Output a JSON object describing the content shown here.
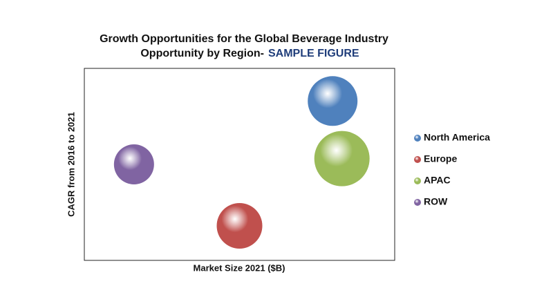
{
  "chart_data": {
    "type": "bubble",
    "title": "Growth Opportunities for the Global Beverage Industry",
    "subtitle": "Opportunity  by Region-",
    "subtitle_highlight": "SAMPLE FIGURE",
    "x_label": "Market Size 2021 ($B)",
    "y_label": "CAGR from 2016 to 2021",
    "xlim": [
      0,
      100
    ],
    "ylim": [
      0,
      100
    ],
    "series": [
      {
        "name": "North America",
        "color": "#4f81bd",
        "x": [
          80
        ],
        "values": [
          83
        ],
        "sizes": [
          36
        ]
      },
      {
        "name": "Europe",
        "color": "#c0504d",
        "x": [
          50
        ],
        "values": [
          18
        ],
        "sizes": [
          33
        ]
      },
      {
        "name": "APAC",
        "color": "#9bbb59",
        "x": [
          83
        ],
        "values": [
          53
        ],
        "sizes": [
          40
        ]
      },
      {
        "name": "ROW",
        "color": "#8064a2",
        "x": [
          16
        ],
        "values": [
          50
        ],
        "sizes": [
          29
        ]
      }
    ],
    "legend": "right"
  }
}
